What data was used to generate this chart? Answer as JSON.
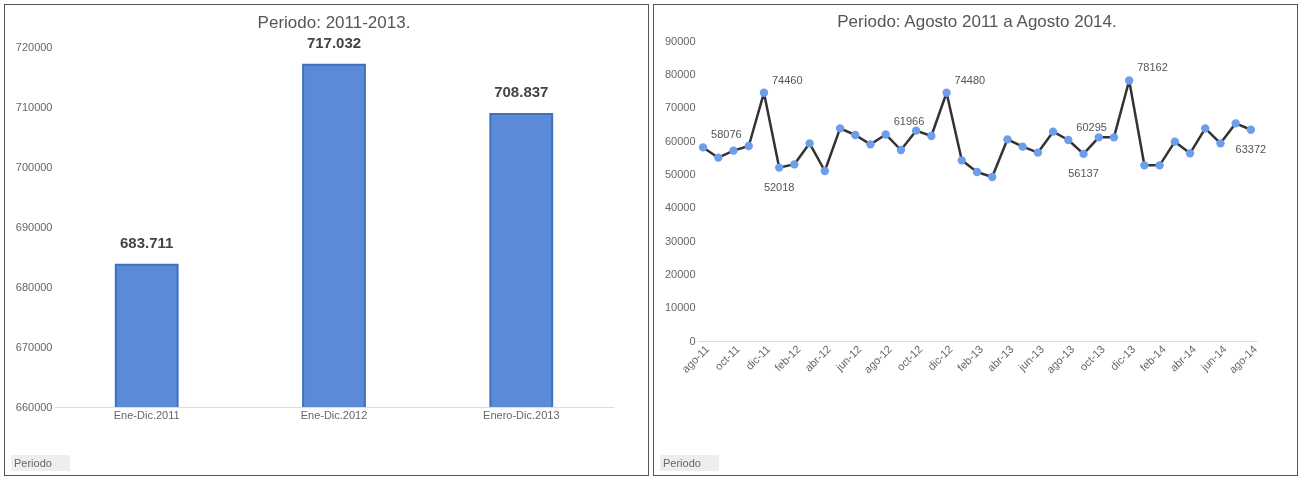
{
  "chart_data": [
    {
      "type": "bar",
      "title": "Periodo: 2011-2013.",
      "categories": [
        "Ene-Dic.2011",
        "Ene-Dic.2012",
        "Enero-Dic.2013"
      ],
      "values": [
        683711,
        717032,
        708837
      ],
      "value_labels": [
        "683.711",
        "717.032",
        "708.837"
      ],
      "color": "#5b8ad8",
      "ylim": [
        660000,
        720000
      ],
      "yticks": [
        660000,
        670000,
        680000,
        690000,
        700000,
        710000,
        720000
      ],
      "grid": false,
      "annotations": [
        "Periodo"
      ]
    },
    {
      "type": "line",
      "title": "Periodo: Agosto 2011 a Agosto 2014.",
      "categories": [
        "ago-11",
        null,
        "oct-11",
        null,
        "dic-11",
        null,
        "feb-12",
        null,
        "abr-12",
        null,
        "jun-12",
        null,
        "ago-12",
        null,
        "oct-12",
        null,
        "dic-12",
        null,
        "feb-13",
        null,
        "abr-13",
        null,
        "jun-13",
        null,
        "ago-13",
        null,
        "oct-13",
        null,
        "dic-13",
        null,
        "feb-14",
        null,
        "abr-14",
        null,
        "jun-14",
        null,
        "ago-14"
      ],
      "series": [
        {
          "color": "#6d9eeb",
          "values": [
            58076,
            55000,
            57100,
            58500,
            74460,
            52018,
            53000,
            59300,
            51000,
            63800,
            61800,
            59000,
            61966,
            57300,
            63100,
            61500,
            74480,
            54200,
            50700,
            49200,
            60500,
            58300,
            56500,
            62800,
            60295,
            56137,
            61100,
            61100,
            78162,
            52700,
            52700,
            59800,
            56300,
            63800,
            59300,
            65300,
            63372
          ],
          "value_labels": [
            "58076",
            null,
            null,
            null,
            "74460",
            "52018",
            null,
            null,
            null,
            null,
            null,
            null,
            "61966",
            null,
            null,
            null,
            "74480",
            null,
            null,
            null,
            null,
            null,
            null,
            null,
            "60295",
            "56137",
            null,
            null,
            "78162",
            null,
            null,
            null,
            null,
            null,
            null,
            null,
            "63372"
          ]
        }
      ],
      "ylim": [
        0,
        90000
      ],
      "yticks": [
        0,
        10000,
        20000,
        30000,
        40000,
        50000,
        60000,
        70000,
        80000,
        90000
      ],
      "marker": "circle",
      "line_style": "solid",
      "grid": false,
      "annotations": [
        "Periodo"
      ]
    }
  ]
}
